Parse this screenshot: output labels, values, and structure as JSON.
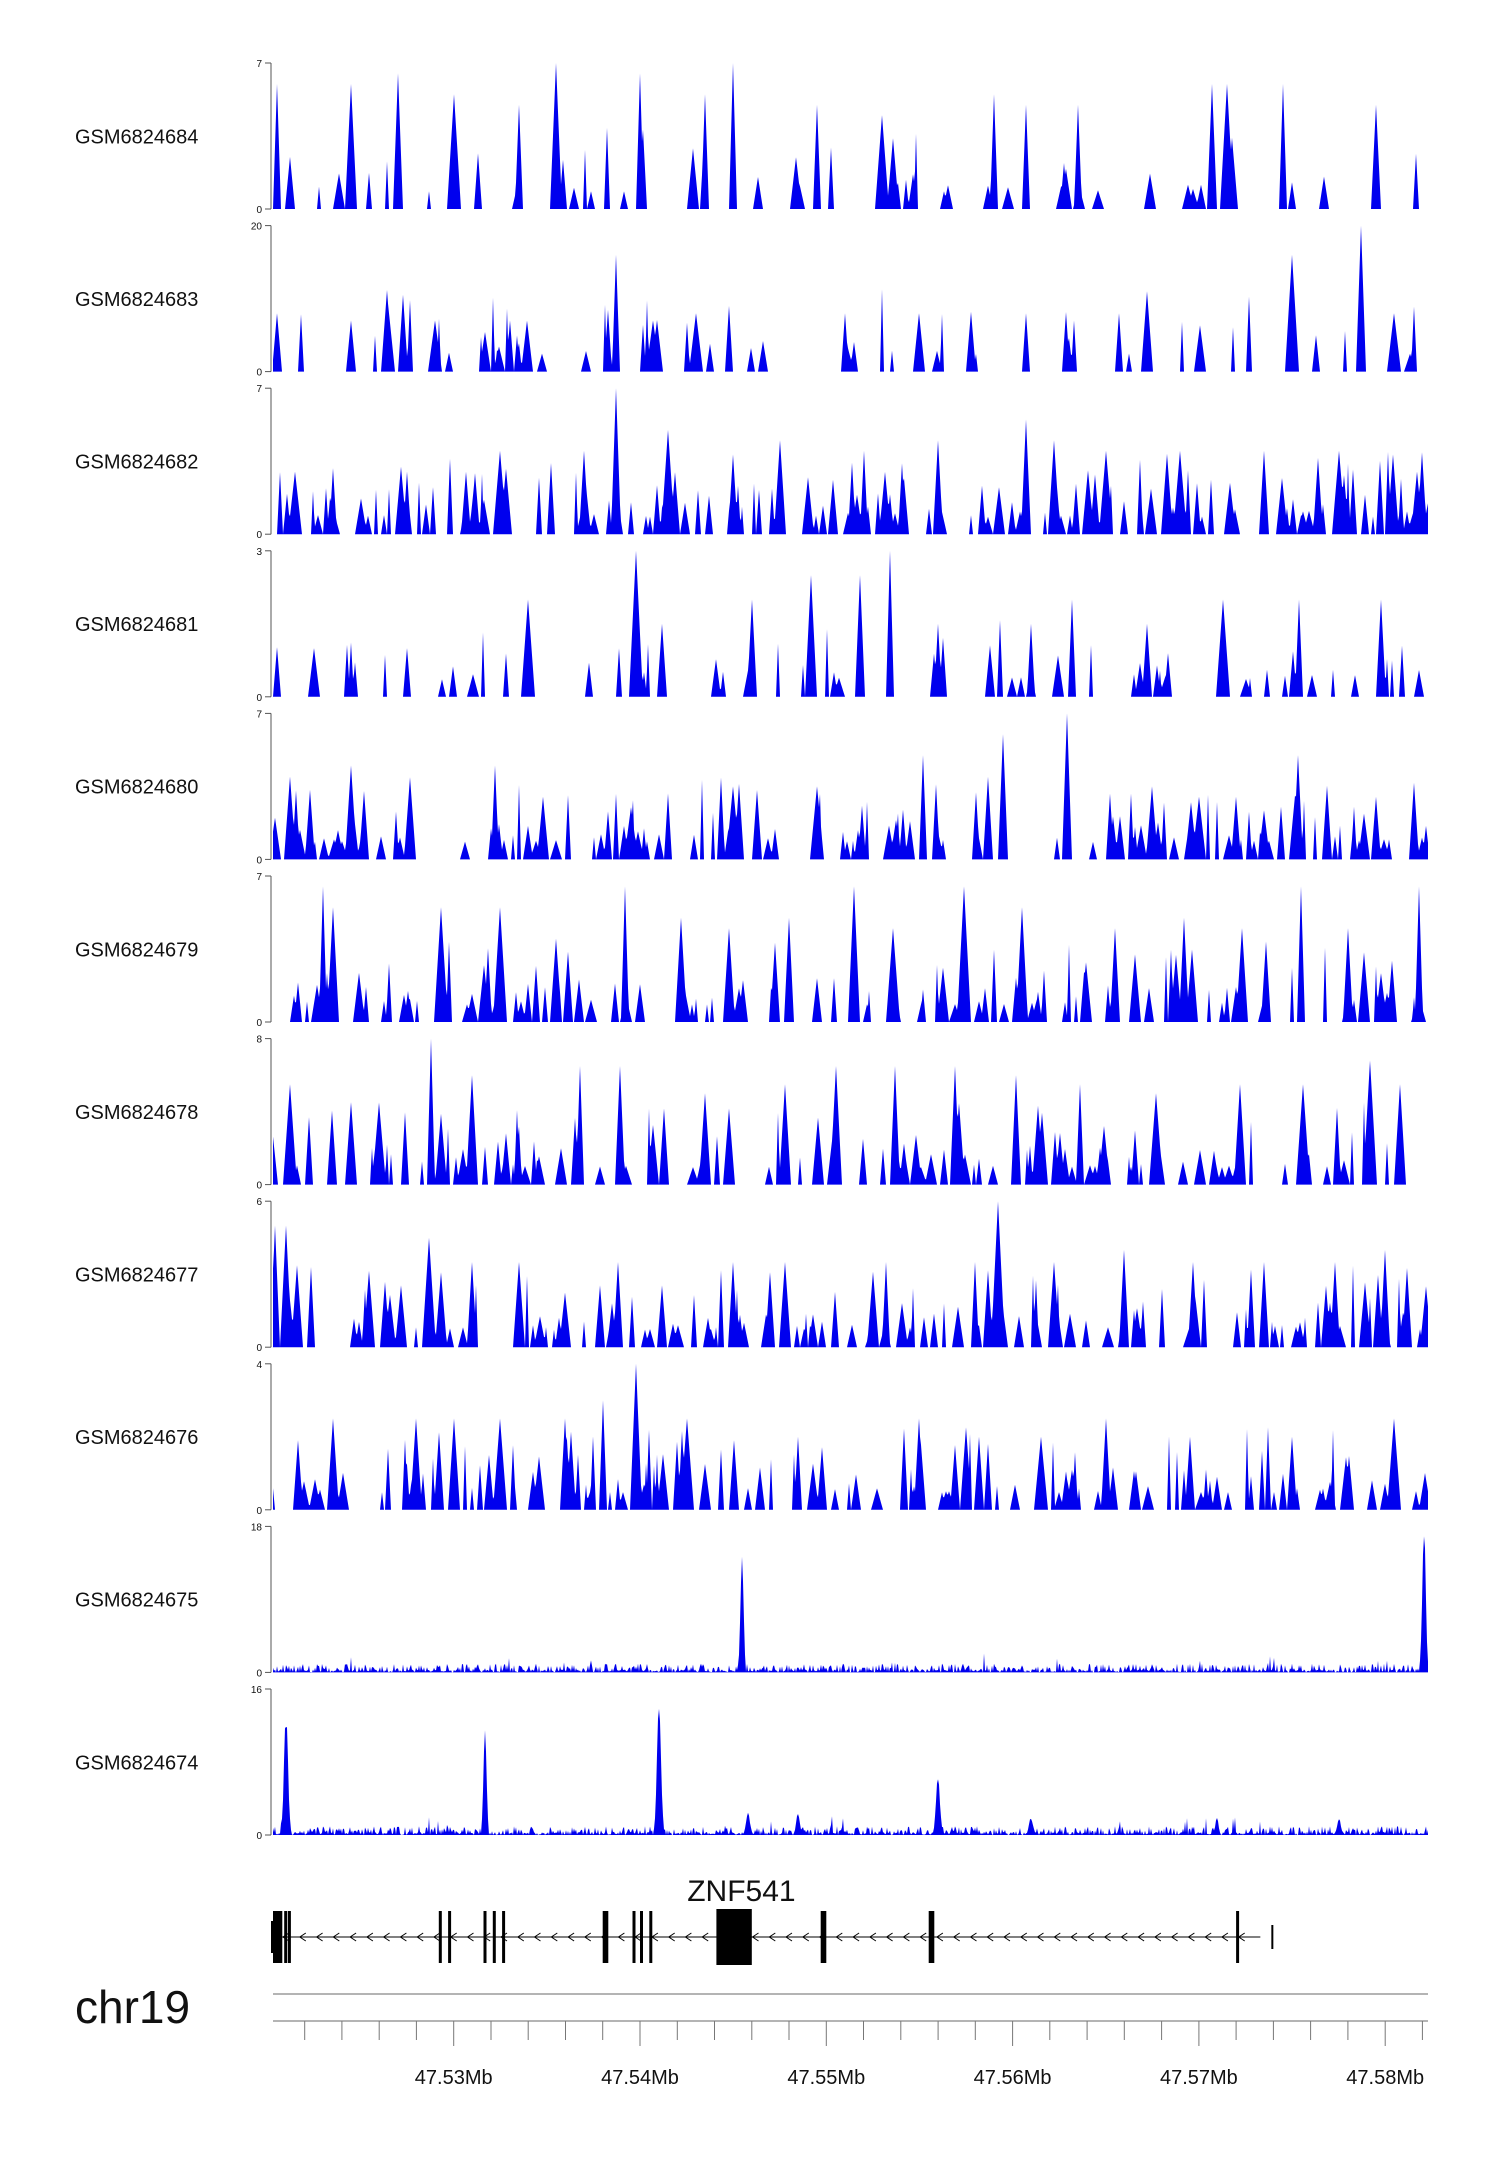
{
  "chart_data": {
    "type": "area",
    "chromosome": "chr19",
    "region": [
      47520300,
      47582300
    ],
    "colors": {
      "signal": "#0000ee",
      "gene": "#000000",
      "axis": "#555555"
    },
    "tracks": [
      {
        "name": "GSM6824684",
        "ylim": [
          0,
          7
        ],
        "ymax_label": "7",
        "ymin_label": "0",
        "style": "spiky",
        "peaks": [
          [
            47520500,
            6
          ],
          [
            47521200,
            2.5
          ],
          [
            47524500,
            6
          ],
          [
            47527000,
            6.5
          ],
          [
            47530000,
            5.5
          ],
          [
            47533500,
            5
          ],
          [
            47535500,
            7
          ],
          [
            47540000,
            6.5
          ],
          [
            47543500,
            5.5
          ],
          [
            47545000,
            7
          ],
          [
            47549500,
            5
          ],
          [
            47553000,
            4.5
          ],
          [
            47559000,
            5.5
          ],
          [
            47560700,
            5
          ],
          [
            47563500,
            5
          ],
          [
            47570700,
            6
          ],
          [
            47571500,
            6
          ],
          [
            47574500,
            6
          ],
          [
            47579500,
            5
          ]
        ]
      },
      {
        "name": "GSM6824683",
        "ylim": [
          0,
          20
        ],
        "ymax_label": "20",
        "ymin_label": "0",
        "style": "sparse",
        "peaks": [
          [
            47520500,
            8
          ],
          [
            47524500,
            7
          ],
          [
            47526500,
            8
          ],
          [
            47529000,
            7
          ],
          [
            47533000,
            7
          ],
          [
            47538700,
            16
          ],
          [
            47540700,
            7
          ],
          [
            47543000,
            8
          ],
          [
            47544800,
            9
          ],
          [
            47551000,
            8
          ],
          [
            47555000,
            8
          ],
          [
            47560700,
            8
          ],
          [
            47565700,
            8
          ],
          [
            47567200,
            11
          ],
          [
            47575000,
            16
          ],
          [
            47578700,
            20
          ],
          [
            47580500,
            8
          ]
        ]
      },
      {
        "name": "GSM6824682",
        "ylim": [
          0,
          7
        ],
        "ymax_label": "7",
        "ymin_label": "0",
        "style": "dense",
        "peaks": [
          [
            47521500,
            3
          ],
          [
            47527500,
            3
          ],
          [
            47532500,
            4
          ],
          [
            47537000,
            4
          ],
          [
            47538700,
            7
          ],
          [
            47541500,
            5
          ],
          [
            47547500,
            4.5
          ],
          [
            47552000,
            4
          ],
          [
            47556000,
            4.5
          ],
          [
            47560700,
            5.5
          ],
          [
            47562200,
            4.5
          ],
          [
            47565000,
            4
          ],
          [
            47569000,
            4
          ],
          [
            47573500,
            4
          ],
          [
            47577500,
            4
          ],
          [
            47581700,
            3
          ]
        ]
      },
      {
        "name": "GSM6824681",
        "ylim": [
          0,
          3
        ],
        "ymax_label": "3",
        "ymin_label": "0",
        "style": "sparse",
        "peaks": [
          [
            47522500,
            1
          ],
          [
            47527500,
            1
          ],
          [
            47534000,
            2
          ],
          [
            47539800,
            3
          ],
          [
            47541200,
            1.5
          ],
          [
            47546000,
            2
          ],
          [
            47549200,
            2.5
          ],
          [
            47551800,
            2.5
          ],
          [
            47553400,
            3
          ],
          [
            47556000,
            1.5
          ],
          [
            47561000,
            1.5
          ],
          [
            47563200,
            2
          ],
          [
            47567200,
            1.5
          ],
          [
            47571300,
            2
          ],
          [
            47575400,
            2
          ],
          [
            47579800,
            2
          ]
        ]
      },
      {
        "name": "GSM6824680",
        "ylim": [
          0,
          7
        ],
        "ymax_label": "7",
        "ymin_label": "0",
        "style": "dense",
        "peaks": [
          [
            47520400,
            2
          ],
          [
            47524500,
            4.5
          ],
          [
            47532200,
            4.5
          ],
          [
            47534800,
            3
          ],
          [
            47539500,
            2.5
          ],
          [
            47545000,
            3.5
          ],
          [
            47549500,
            3.5
          ],
          [
            47555200,
            5
          ],
          [
            47559500,
            6
          ],
          [
            47562900,
            7
          ],
          [
            47567500,
            3.5
          ],
          [
            47570000,
            3
          ],
          [
            47572000,
            3
          ],
          [
            47575300,
            5
          ],
          [
            47579500,
            3
          ]
        ]
      },
      {
        "name": "GSM6824679",
        "ylim": [
          0,
          7
        ],
        "ymax_label": "7",
        "ymin_label": "0",
        "style": "dense",
        "peaks": [
          [
            47523000,
            6.5
          ],
          [
            47523500,
            5.5
          ],
          [
            47529300,
            5.5
          ],
          [
            47532500,
            5.5
          ],
          [
            47535500,
            4
          ],
          [
            47539200,
            6.5
          ],
          [
            47542200,
            5
          ],
          [
            47544800,
            4.5
          ],
          [
            47548000,
            5
          ],
          [
            47551500,
            6.5
          ],
          [
            47553600,
            4.5
          ],
          [
            47557400,
            6.5
          ],
          [
            47560500,
            5.5
          ],
          [
            47565500,
            4.5
          ],
          [
            47569200,
            5
          ],
          [
            47572300,
            4.5
          ],
          [
            47575500,
            6.5
          ],
          [
            47578000,
            4.5
          ],
          [
            47581800,
            6.5
          ]
        ]
      },
      {
        "name": "GSM6824678",
        "ylim": [
          0,
          8
        ],
        "ymax_label": "8",
        "ymin_label": "0",
        "style": "dense",
        "peaks": [
          [
            47521200,
            5.5
          ],
          [
            47526000,
            4.5
          ],
          [
            47528800,
            8
          ],
          [
            47531000,
            6
          ],
          [
            47536800,
            6.5
          ],
          [
            47538900,
            6.5
          ],
          [
            47543500,
            5
          ],
          [
            47547800,
            5.5
          ],
          [
            47550500,
            6.5
          ],
          [
            47553700,
            6.5
          ],
          [
            47556900,
            6.5
          ],
          [
            47560200,
            6
          ],
          [
            47563600,
            5.5
          ],
          [
            47567700,
            5
          ],
          [
            47572200,
            5.5
          ],
          [
            47575600,
            5.5
          ],
          [
            47579200,
            6.8
          ],
          [
            47580800,
            5.5
          ]
        ]
      },
      {
        "name": "GSM6824677",
        "ylim": [
          0,
          6
        ],
        "ymax_label": "6",
        "ymin_label": "0",
        "style": "dense",
        "peaks": [
          [
            47520400,
            5
          ],
          [
            47521000,
            5
          ],
          [
            47528700,
            4.5
          ],
          [
            47531000,
            3.5
          ],
          [
            47533500,
            3.5
          ],
          [
            47538800,
            3.5
          ],
          [
            47545000,
            3.5
          ],
          [
            47547800,
            3.5
          ],
          [
            47553200,
            3.5
          ],
          [
            47558000,
            3.5
          ],
          [
            47559200,
            6
          ],
          [
            47562200,
            3.5
          ],
          [
            47566000,
            4
          ],
          [
            47569700,
            3.5
          ],
          [
            47573500,
            3.5
          ],
          [
            47577300,
            3.5
          ],
          [
            47580000,
            4
          ]
        ]
      },
      {
        "name": "GSM6824676",
        "ylim": [
          0,
          4
        ],
        "ymax_label": "4",
        "ymin_label": "0",
        "style": "dense",
        "peaks": [
          [
            47523500,
            2.5
          ],
          [
            47528000,
            2.5
          ],
          [
            47530000,
            2.5
          ],
          [
            47532500,
            2.5
          ],
          [
            47536000,
            2.5
          ],
          [
            47538000,
            3
          ],
          [
            47539800,
            4
          ],
          [
            47542500,
            2.5
          ],
          [
            47548500,
            2
          ],
          [
            47555000,
            2.5
          ],
          [
            47558200,
            2
          ],
          [
            47561500,
            2
          ],
          [
            47565000,
            2.5
          ],
          [
            47569500,
            2
          ],
          [
            47575000,
            2
          ],
          [
            47580500,
            2.5
          ]
        ]
      },
      {
        "name": "GSM6824675",
        "ylim": [
          0,
          18
        ],
        "ymax_label": "18",
        "ymin_label": "0",
        "style": "bumps",
        "peaks": [
          [
            47545500,
            15
          ],
          [
            47582100,
            18
          ]
        ]
      },
      {
        "name": "GSM6824674",
        "ylim": [
          0,
          16
        ],
        "ymax_label": "16",
        "ymin_label": "0",
        "style": "bumps",
        "peaks": [
          [
            47521000,
            13.5
          ],
          [
            47531700,
            11.5
          ],
          [
            47541000,
            16
          ],
          [
            47545800,
            2.5
          ],
          [
            47556000,
            6.5
          ],
          [
            47548500,
            2.5
          ],
          [
            47561000,
            2
          ],
          [
            47571000,
            2
          ],
          [
            47577500,
            2
          ]
        ]
      }
    ],
    "gene": {
      "name": "ZNF541",
      "strand": "-",
      "start": 47520300,
      "end": 47573300,
      "exons": [
        [
          47520300,
          47520800
        ],
        [
          47520900,
          47521000
        ],
        [
          47521100,
          47521250
        ],
        [
          47529200,
          47529250
        ],
        [
          47529700,
          47529750
        ],
        [
          47531600,
          47531700
        ],
        [
          47532100,
          47532150
        ],
        [
          47532600,
          47532700
        ],
        [
          47538000,
          47538300
        ],
        [
          47539600,
          47539700
        ],
        [
          47540000,
          47540100
        ],
        [
          47540500,
          47540600
        ],
        [
          47544100,
          47546000
        ],
        [
          47549700,
          47550000
        ],
        [
          47555500,
          47555800
        ],
        [
          47572000,
          47572100
        ]
      ]
    },
    "x_axis": {
      "ticks": [
        47530000,
        47540000,
        47550000,
        47560000,
        47570000,
        47580000
      ],
      "tick_labels": [
        "47.53Mb",
        "47.54Mb",
        "47.55Mb",
        "47.56Mb",
        "47.57Mb",
        "47.58Mb"
      ],
      "minor_tick_step": 2000
    }
  }
}
